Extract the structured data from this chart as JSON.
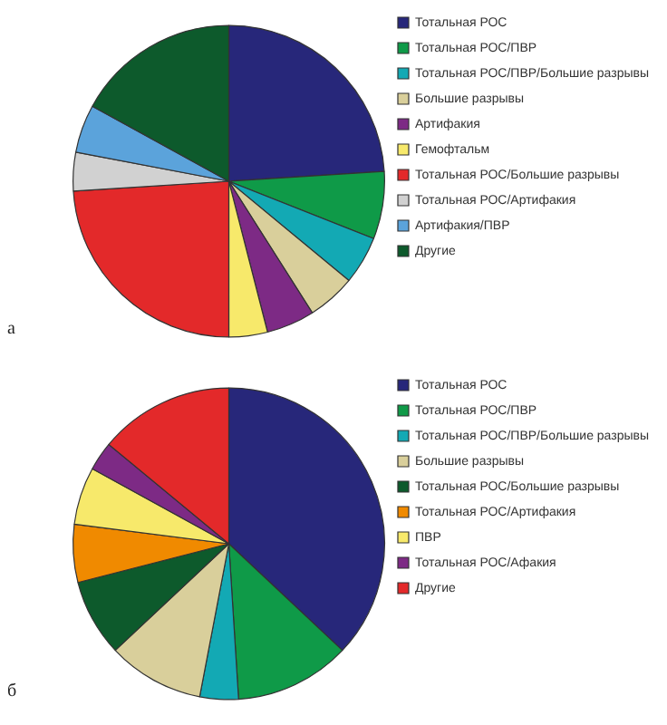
{
  "chart_data": [
    {
      "type": "pie",
      "title": "а",
      "legend": "right",
      "categories": [
        "Тотальная РОС",
        "Тотальная РОС/ПВР",
        "Тотальная РОС/ПВР/Большие разрывы",
        "Большие разрывы",
        "Артифакия",
        "Гемофтальм",
        "Тотальная РОС/Большие разрывы",
        "Тотальная РОС/Артифакия",
        "Артифакия/ПВР",
        "Другие"
      ],
      "values": [
        24,
        7,
        5,
        5,
        5,
        4,
        24,
        4,
        5,
        17
      ],
      "colors": [
        "#27277a",
        "#0f9a48",
        "#13a9b4",
        "#d9cf9b",
        "#7d2a85",
        "#f7e96b",
        "#e3292a",
        "#d1d1d1",
        "#5ba3db",
        "#0d5a2c"
      ]
    },
    {
      "type": "pie",
      "title": "б",
      "legend": "right",
      "categories": [
        "Тотальная РОС",
        "Тотальная РОС/ПВР",
        "Тотальная РОС/ПВР/Большие разрывы",
        "Большие разрывы",
        "Тотальная РОС/Большие разрывы",
        "Тотальная РОС/Артифакия",
        "ПВР",
        "Тотальная РОС/Афакия",
        "Другие"
      ],
      "values": [
        37,
        12,
        4,
        10,
        8,
        6,
        6,
        3,
        14
      ],
      "colors": [
        "#27277a",
        "#0f9a48",
        "#13a9b4",
        "#d9cf9b",
        "#0d5a2c",
        "#f08a00",
        "#f7e96b",
        "#7d2a85",
        "#e3292a"
      ]
    }
  ]
}
